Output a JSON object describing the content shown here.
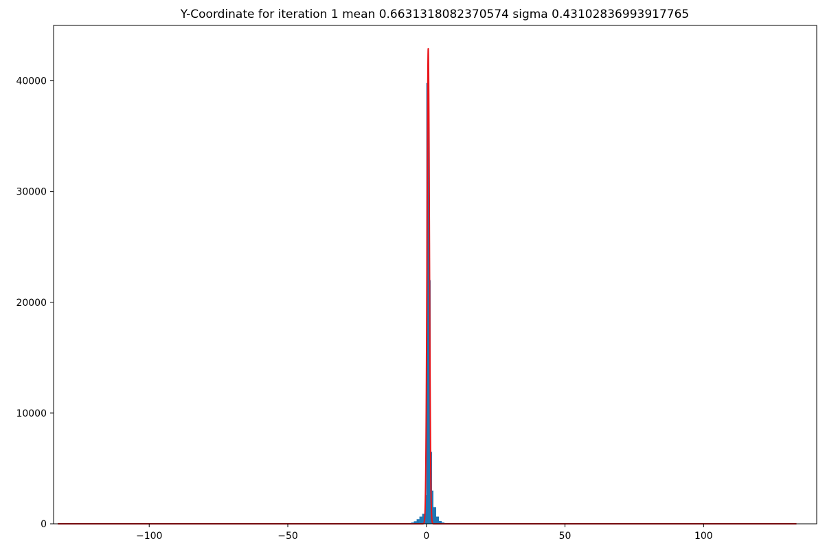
{
  "chart_data": {
    "type": "bar",
    "title": "Y-Coordinate for iteration 1 mean 0.6631318082370574 sigma 0.43102836993917765",
    "xlabel": "",
    "ylabel": "",
    "xlim": [
      -134.5,
      140.8
    ],
    "ylim": [
      0,
      45000
    ],
    "grid": false,
    "xticks": [
      -100,
      -50,
      0,
      50,
      100
    ],
    "xtick_labels": [
      "−100",
      "−50",
      "0",
      "50",
      "100"
    ],
    "yticks": [
      0,
      10000,
      20000,
      30000,
      40000
    ],
    "ytick_labels": [
      "0",
      "10000",
      "20000",
      "30000",
      "40000"
    ],
    "bar_color": "#1f77b4",
    "fit_color": "#e8141a",
    "bin_width": 1.05,
    "bins": [
      {
        "x": -6.0,
        "value": 60
      },
      {
        "x": -5.0,
        "value": 120
      },
      {
        "x": -4.0,
        "value": 230
      },
      {
        "x": -3.0,
        "value": 420
      },
      {
        "x": -2.0,
        "value": 650
      },
      {
        "x": -1.0,
        "value": 900
      },
      {
        "x": 0.0,
        "value": 2600
      },
      {
        "x": 0.5,
        "value": 39800
      },
      {
        "x": 1.0,
        "value": 22000
      },
      {
        "x": 1.5,
        "value": 6500
      },
      {
        "x": 2.0,
        "value": 3000
      },
      {
        "x": 3.0,
        "value": 1500
      },
      {
        "x": 4.0,
        "value": 650
      },
      {
        "x": 5.0,
        "value": 250
      },
      {
        "x": 6.0,
        "value": 120
      },
      {
        "x": 7.0,
        "value": 50
      }
    ],
    "fit": {
      "label": "",
      "mean": 0.6631318082370574,
      "sigma": 0.43102836993917765,
      "peak": 42900,
      "x_range": [
        -133,
        133.5
      ]
    }
  }
}
